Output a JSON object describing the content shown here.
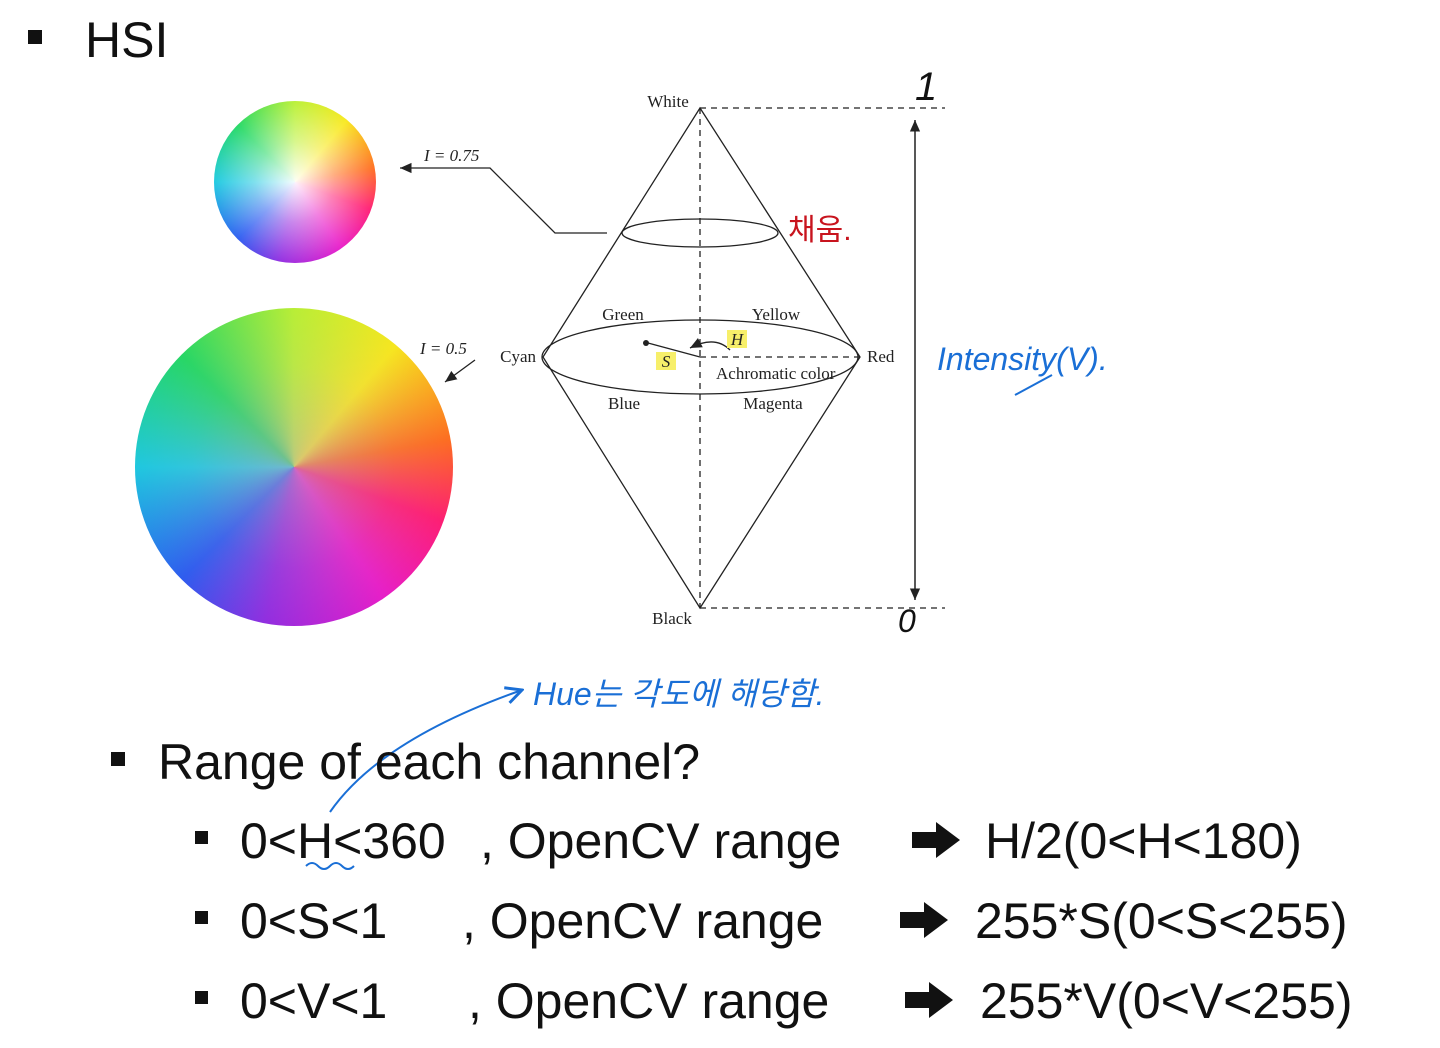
{
  "title": "HSI",
  "diagram": {
    "top": "White",
    "bottom": "Black",
    "left": "Cyan",
    "right": "Red",
    "green": "Green",
    "yellow": "Yellow",
    "blue": "Blue",
    "magenta": "Magenta",
    "hue": "H",
    "saturation": "S",
    "achromatic": "Achromatic color",
    "level_high": "I = 0.75",
    "level_mid": "I = 0.5"
  },
  "annotations": {
    "top_mark": "1",
    "bottom_mark": "0",
    "fill_note": "채움.",
    "axis_note": "Intensity(V).",
    "hue_note": "Hue는 각도에 해당함."
  },
  "bullet": "Range of each channel?",
  "rows": [
    {
      "range": "0<H<360",
      "label": ", OpenCV range",
      "result": "H/2(0<H<180)"
    },
    {
      "range": "0<S<1",
      "label": ", OpenCV range",
      "result": "255*S(0<S<255)"
    },
    {
      "range": "0<V<1",
      "label": ", OpenCV range",
      "result": "255*V(0<V<255)"
    }
  ]
}
